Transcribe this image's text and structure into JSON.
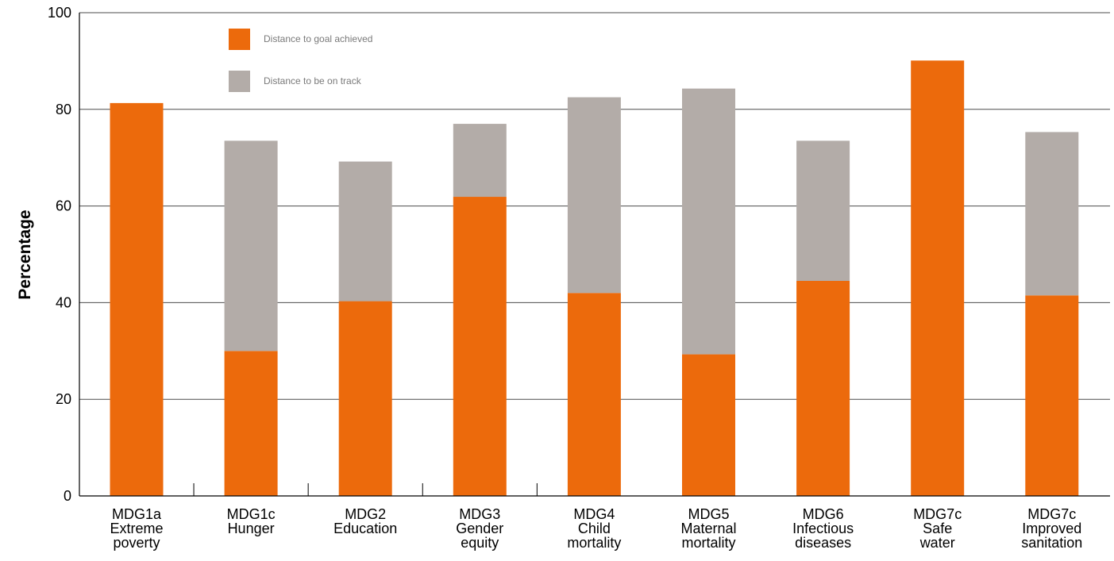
{
  "chart_data": {
    "type": "bar",
    "stacked": true,
    "title": "",
    "xlabel": "",
    "ylabel": "Percentage",
    "ylim": [
      0,
      100
    ],
    "yticks": [
      0,
      20,
      40,
      60,
      80,
      100
    ],
    "grid": true,
    "legend_position": "top-left",
    "categories": [
      [
        "MDG1a",
        "Extreme",
        "poverty"
      ],
      [
        "MDG1c",
        "Hunger"
      ],
      [
        "MDG2",
        "Education"
      ],
      [
        "MDG3",
        "Gender",
        "equity"
      ],
      [
        "MDG4",
        "Child",
        "mortality"
      ],
      [
        "MDG5",
        "Maternal",
        "mortality"
      ],
      [
        "MDG6",
        "Infectious",
        "diseases"
      ],
      [
        "MDG7c",
        "Safe",
        "water"
      ],
      [
        "MDG7c",
        "Improved",
        "sanitation"
      ]
    ],
    "series": [
      {
        "name": "Distance to goal achieved",
        "color": "#ec6a0c",
        "values": [
          81.3,
          30.0,
          40.3,
          61.9,
          42.0,
          29.3,
          44.5,
          90.1,
          41.5
        ]
      },
      {
        "name": "Distance to be on track",
        "color": "#b3aca8",
        "values": [
          0,
          43.5,
          28.9,
          15.1,
          40.5,
          55.0,
          29.0,
          0,
          33.8
        ]
      }
    ]
  }
}
